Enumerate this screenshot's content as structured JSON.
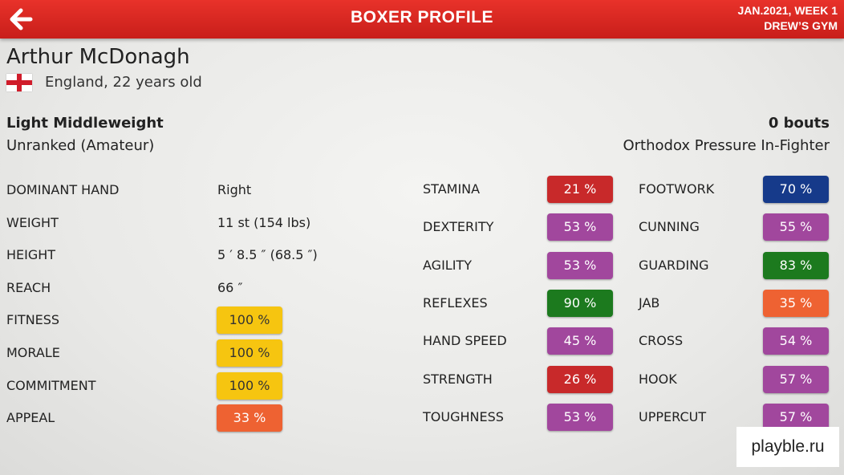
{
  "header": {
    "title": "BOXER PROFILE",
    "date": "JAN.2021, WEEK 1",
    "gym": "DREW’S GYM"
  },
  "boxer": {
    "name": "Arthur McDonagh",
    "nationality": "England, 22 years old",
    "weight_class": "Light Middleweight",
    "rank": "Unranked (Amateur)",
    "bouts": "0 bouts",
    "style": "Orthodox Pressure In-Fighter"
  },
  "info": [
    {
      "label": "DOMINANT HAND",
      "value": "Right"
    },
    {
      "label": "WEIGHT",
      "value": "11 st (154 lbs)"
    },
    {
      "label": "HEIGHT",
      "value": "5 ′ 8.5 ″ (68.5 ″)"
    },
    {
      "label": "REACH",
      "value": "66 ″"
    },
    {
      "label": "FITNESS",
      "value": "100 %",
      "color": "#f6c510"
    },
    {
      "label": "MORALE",
      "value": "100 %",
      "color": "#f6c510"
    },
    {
      "label": "COMMITMENT",
      "value": "100 %",
      "color": "#f6c510"
    },
    {
      "label": "APPEAL",
      "value": "33 %",
      "color": "#ee6232"
    }
  ],
  "stats_left": [
    {
      "label": "STAMINA",
      "value": "21 %",
      "color": "#c8292a"
    },
    {
      "label": "DEXTERITY",
      "value": "53 %",
      "color": "#a1479d"
    },
    {
      "label": "AGILITY",
      "value": "53 %",
      "color": "#a1479d"
    },
    {
      "label": "REFLEXES",
      "value": "90 %",
      "color": "#1c7a1e"
    },
    {
      "label": "HAND SPEED",
      "value": "45 %",
      "color": "#a1479d"
    },
    {
      "label": "STRENGTH",
      "value": "26 %",
      "color": "#c8292a"
    },
    {
      "label": "TOUGHNESS",
      "value": "53 %",
      "color": "#a1479d"
    }
  ],
  "stats_right": [
    {
      "label": "FOOTWORK",
      "value": "70 %",
      "color": "#163a8a"
    },
    {
      "label": "CUNNING",
      "value": "55 %",
      "color": "#a1479d"
    },
    {
      "label": "GUARDING",
      "value": "83 %",
      "color": "#1c7a1e"
    },
    {
      "label": "JAB",
      "value": "35 %",
      "color": "#ee6232"
    },
    {
      "label": "CROSS",
      "value": "54 %",
      "color": "#a1479d"
    },
    {
      "label": "HOOK",
      "value": "57 %",
      "color": "#a1479d"
    },
    {
      "label": "UPPERCUT",
      "value": "57 %",
      "color": "#a1479d"
    }
  ],
  "watermark": "playble.ru"
}
